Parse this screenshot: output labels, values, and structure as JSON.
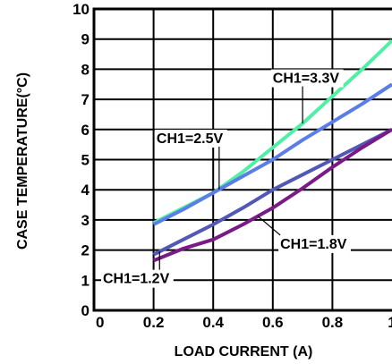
{
  "chart_data": {
    "type": "line",
    "xlabel": "LOAD CURRENT (A)",
    "ylabel": "CASE TEMPERATURE(°C)",
    "xlim": [
      0,
      1.0
    ],
    "ylim": [
      0,
      10
    ],
    "x_ticks": [
      "0",
      "0.2",
      "0.4",
      "0.6",
      "0.8",
      "1"
    ],
    "y_ticks": [
      "0",
      "1",
      "2",
      "3",
      "4",
      "5",
      "6",
      "7",
      "8",
      "9",
      "10"
    ],
    "grid": true,
    "series": [
      {
        "name": "CH1=3.3V",
        "color": "#4ff0a6",
        "x": [
          0.2,
          0.3,
          0.4,
          0.5,
          0.6,
          0.7,
          0.8,
          0.9,
          1.0
        ],
        "y": [
          2.9,
          3.4,
          3.9,
          4.6,
          5.4,
          6.2,
          7.1,
          8.0,
          8.95
        ]
      },
      {
        "name": "CH1=2.5V",
        "color": "#5b7de8",
        "x": [
          0.2,
          0.3,
          0.4,
          0.5,
          0.6,
          0.7,
          0.8,
          0.9,
          1.0
        ],
        "y": [
          2.85,
          3.35,
          3.9,
          4.45,
          5.0,
          5.65,
          6.25,
          6.85,
          7.5
        ]
      },
      {
        "name": "CH1=1.2V",
        "color": "#5159b5",
        "x": [
          0.2,
          0.3,
          0.4,
          0.5,
          0.6,
          0.7,
          0.8,
          0.9,
          1.0
        ],
        "y": [
          1.85,
          2.35,
          2.85,
          3.4,
          4.0,
          4.5,
          5.0,
          5.5,
          6.0
        ]
      },
      {
        "name": "CH1=1.8V",
        "color": "#7a1a86",
        "x": [
          0.2,
          0.3,
          0.4,
          0.5,
          0.6,
          0.7,
          0.8,
          0.9,
          1.0
        ],
        "y": [
          1.65,
          2.05,
          2.35,
          2.85,
          3.4,
          4.05,
          4.75,
          5.4,
          6.0
        ]
      }
    ],
    "annotations": [
      {
        "text": "CH1=3.3V",
        "series": "CH1=3.3V"
      },
      {
        "text": "CH1=2.5V",
        "series": "CH1=2.5V"
      },
      {
        "text": "CH1=1.8V",
        "series": "CH1=1.8V"
      },
      {
        "text": "CH1=1.2V",
        "series": "CH1=1.2V"
      }
    ]
  }
}
